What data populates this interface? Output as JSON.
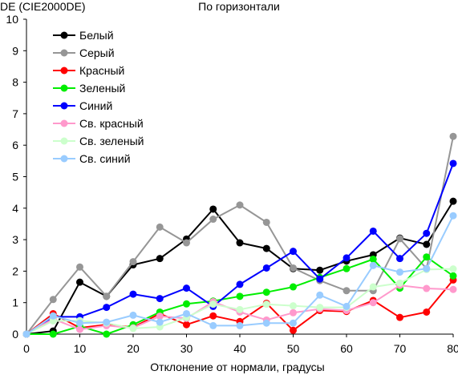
{
  "chart_data": {
    "type": "line",
    "title": "По горизонтали",
    "ylabel": "DE (CIE2000DE)",
    "xlabel": "Отклонение от нормали, градусы",
    "xlim": [
      0,
      80
    ],
    "ylim": [
      0,
      10
    ],
    "x_ticks": [
      0,
      10,
      20,
      30,
      40,
      50,
      60,
      70,
      80
    ],
    "y_ticks": [
      0,
      1,
      2,
      3,
      4,
      5,
      6,
      7,
      8,
      9,
      10
    ],
    "grid": false,
    "legend_position": "top-left",
    "x": [
      0,
      5,
      10,
      15,
      20,
      25,
      30,
      35,
      40,
      45,
      50,
      55,
      60,
      65,
      70,
      75,
      80
    ],
    "series": [
      {
        "name": "Белый",
        "color": "#000000",
        "values": [
          0,
          0.1,
          1.65,
          1.2,
          2.2,
          2.4,
          3.02,
          3.97,
          2.9,
          2.72,
          2.08,
          2.03,
          2.32,
          2.52,
          3.05,
          2.85,
          4.22
        ]
      },
      {
        "name": "Серый",
        "color": "#969696",
        "values": [
          0,
          1.1,
          2.13,
          1.2,
          2.3,
          3.4,
          2.9,
          3.65,
          4.1,
          3.55,
          2.1,
          1.7,
          1.38,
          1.38,
          3.03,
          2.08,
          6.28
        ]
      },
      {
        "name": "Красный",
        "color": "#ff0000",
        "values": [
          0,
          0.65,
          0.2,
          0.3,
          0.22,
          0.65,
          0.3,
          0.58,
          0.4,
          0.98,
          0.12,
          0.75,
          0.72,
          1.07,
          0.53,
          0.7,
          1.72
        ]
      },
      {
        "name": "Зеленый",
        "color": "#00ee00",
        "values": [
          0,
          0,
          0.25,
          0,
          0.3,
          0.7,
          0.96,
          1.05,
          1.2,
          1.33,
          1.5,
          1.8,
          2.08,
          2.38,
          1.46,
          2.45,
          1.85
        ]
      },
      {
        "name": "Синий",
        "color": "#0000ff",
        "values": [
          0,
          0.55,
          0.55,
          0.85,
          1.27,
          1.13,
          1.46,
          0.88,
          1.58,
          2.1,
          2.63,
          1.75,
          2.42,
          3.27,
          2.4,
          3.2,
          5.42
        ]
      },
      {
        "name": "Св. красный",
        "color": "#ff99cc",
        "values": [
          0,
          0.48,
          0.15,
          0.27,
          0.2,
          0.57,
          0.5,
          1.03,
          0.7,
          0.45,
          0.68,
          0.8,
          0.75,
          1.0,
          1.55,
          1.45,
          1.42
        ]
      },
      {
        "name": "Св. зеленый",
        "color": "#ccffcc",
        "values": [
          0,
          0.42,
          0.43,
          0.35,
          0.18,
          0.23,
          0.53,
          0.95,
          0.78,
          0.95,
          0.9,
          0.85,
          0.85,
          1.5,
          1.62,
          2.05,
          2.07
        ]
      },
      {
        "name": "Св. синий",
        "color": "#99ccff",
        "values": [
          0,
          0.58,
          0.35,
          0.38,
          0.6,
          0.38,
          0.65,
          0.27,
          0.27,
          0.35,
          0.35,
          1.24,
          0.88,
          2.18,
          1.97,
          2.08,
          3.76
        ]
      }
    ]
  }
}
